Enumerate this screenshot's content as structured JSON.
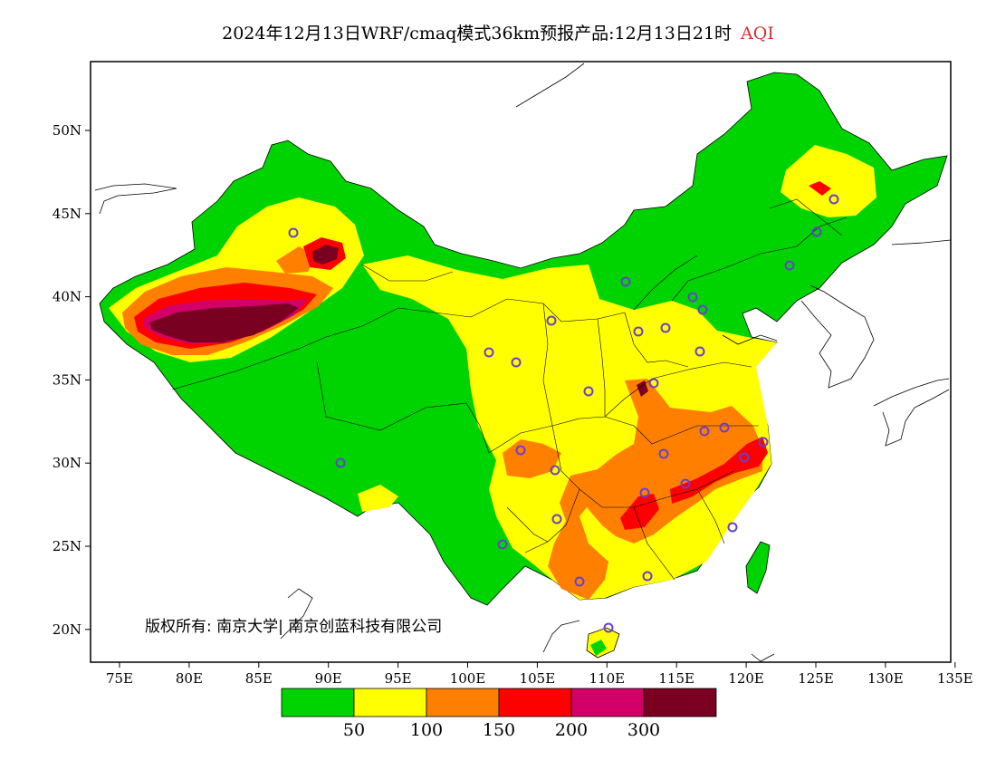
{
  "title": {
    "main": "2024年12月13日WRF/cmaq模式36km预报产品:12月13日21时",
    "highlight": "AQI",
    "highlight_color": "#d83030"
  },
  "map": {
    "lon_ticks": [
      "75E",
      "80E",
      "85E",
      "90E",
      "95E",
      "100E",
      "105E",
      "110E",
      "115E",
      "120E",
      "125E",
      "130E",
      "135E"
    ],
    "lat_ticks": [
      "50N",
      "45N",
      "40N",
      "35N",
      "30N",
      "25N",
      "20N"
    ],
    "copyright": "版权所有: 南京大学| 南京创蓝科技有限公司",
    "station_marker_color": "#6a3fd0"
  },
  "legend": {
    "colors": [
      "#00d400",
      "#ffff00",
      "#ff8000",
      "#ff0000",
      "#d4006a",
      "#7a0022"
    ],
    "labels": [
      "50",
      "100",
      "150",
      "200",
      "300"
    ]
  }
}
